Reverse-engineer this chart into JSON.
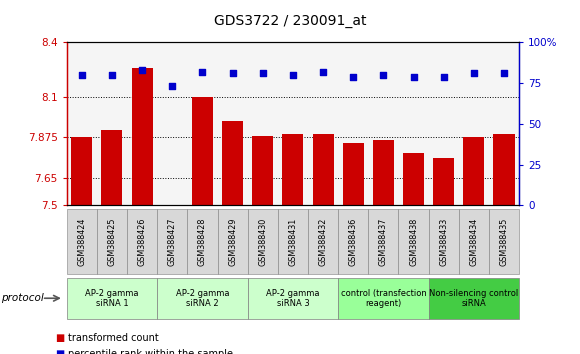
{
  "title": "GDS3722 / 230091_at",
  "samples": [
    "GSM388424",
    "GSM388425",
    "GSM388426",
    "GSM388427",
    "GSM388428",
    "GSM388429",
    "GSM388430",
    "GSM388431",
    "GSM388432",
    "GSM388436",
    "GSM388437",
    "GSM388438",
    "GSM388433",
    "GSM388434",
    "GSM388435"
  ],
  "bar_values": [
    7.876,
    7.918,
    8.26,
    7.503,
    8.1,
    7.965,
    7.885,
    7.892,
    7.892,
    7.845,
    7.862,
    7.79,
    7.76,
    7.875,
    7.892
  ],
  "dot_values": [
    80,
    80,
    83,
    73,
    82,
    81,
    81,
    80,
    82,
    79,
    80,
    79,
    79,
    81,
    81
  ],
  "groups": [
    {
      "label": "AP-2 gamma\nsiRNA 1",
      "indices": [
        0,
        1,
        2
      ],
      "color": "#ccffcc"
    },
    {
      "label": "AP-2 gamma\nsiRNA 2",
      "indices": [
        3,
        4,
        5
      ],
      "color": "#ccffcc"
    },
    {
      "label": "AP-2 gamma\nsiRNA 3",
      "indices": [
        6,
        7,
        8
      ],
      "color": "#ccffcc"
    },
    {
      "label": "control (transfection\nreagent)",
      "indices": [
        9,
        10,
        11
      ],
      "color": "#99ff99"
    },
    {
      "label": "Non-silencing control\nsiRNA",
      "indices": [
        12,
        13,
        14
      ],
      "color": "#44cc44"
    }
  ],
  "ylim_left": [
    7.5,
    8.4
  ],
  "ylim_right": [
    0,
    100
  ],
  "yticks_left": [
    7.5,
    7.65,
    7.875,
    8.1,
    8.4
  ],
  "yticks_right": [
    0,
    25,
    50,
    75,
    100
  ],
  "bar_color": "#cc0000",
  "dot_color": "#0000cc",
  "bg_color": "#f5f5f5",
  "protocol_label": "protocol",
  "legend1": "transformed count",
  "legend2": "percentile rank within the sample",
  "sample_bg": "#d8d8d8"
}
